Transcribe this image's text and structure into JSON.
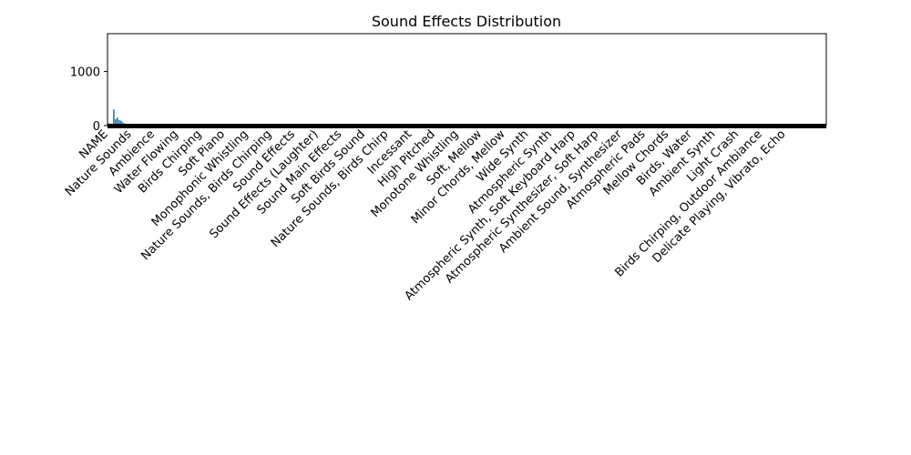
{
  "chart_data": {
    "type": "bar",
    "title": "Sound Effects Distribution",
    "xlabel": "",
    "ylabel": "",
    "ylim": [
      0,
      1700
    ],
    "yticks": [
      0,
      1000
    ],
    "bar_color": "#1f77b4",
    "grid": false,
    "legend": "none",
    "category_count_estimate": 400,
    "categories": [
      "NAME",
      "Nature Sounds",
      "Ambience",
      "Water Flowing",
      "Birds Chirping",
      "Soft Piano",
      "Monophonic Whistling",
      "Nature Sounds, Birds Chirping",
      "Sound Effects",
      "Sound Effects (Laughter)",
      "Sound Main Effects",
      "Soft Birds Sound",
      "Nature Sounds, Birds Chirp",
      "Incessant",
      "High Pitched",
      "Monotone Whistling",
      "Soft, Mellow",
      "Minor Chords, Mellow",
      "Wide Synth",
      "Atmospheric Synth",
      "Atmospheric Synth, Soft Keyboard Harp",
      "Atmospheric Synthesizer, Soft Harp",
      "Ambient Sound, Synthesizer",
      "Atmospheric Pads",
      "Mellow Chords",
      "Birds, Water",
      "Ambient Synth",
      "Light Crash",
      "Birds Chirping, Outdoor Ambiance",
      "Delicate Playing, Vibrato, Echo"
    ],
    "values": [
      40,
      20,
      35,
      300,
      120,
      150,
      100,
      90,
      60,
      40,
      30,
      20,
      25,
      15,
      10,
      12,
      8,
      6,
      5,
      4,
      4,
      3,
      3,
      20,
      8,
      6,
      5,
      4,
      3,
      2
    ],
    "highlighted_peaks": [
      {
        "category_index": 3,
        "value": 300
      },
      {
        "category_index": 5,
        "value": 150
      },
      {
        "category_index": 6,
        "value": 100
      }
    ]
  }
}
